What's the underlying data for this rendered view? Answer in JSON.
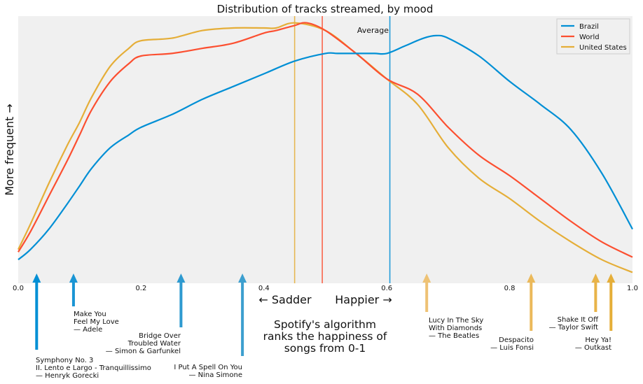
{
  "chart_data": {
    "type": "line",
    "title": "Distribution of tracks streamed, by mood",
    "xlabel_left": "← Sadder",
    "xlabel_right": "Happier →",
    "ylabel": "More frequent →",
    "xlim": [
      0,
      1
    ],
    "ylim": [
      0,
      1
    ],
    "x_ticks": [
      "0.0",
      "0.2",
      "0.4",
      "0.6",
      "0.8",
      "1.0"
    ],
    "x_tick_values": [
      0,
      0.2,
      0.4,
      0.6,
      0.8,
      1.0
    ],
    "grid": false,
    "legend_position": "top-right",
    "average_label": "Average",
    "center_note": [
      "Spotify's algorithm",
      "ranks the happiness of",
      "songs from 0-1"
    ],
    "series": [
      {
        "name": "Brazil",
        "color": "#008fd5",
        "average": 0.605,
        "x": [
          0.0,
          0.02,
          0.05,
          0.08,
          0.1,
          0.12,
          0.15,
          0.18,
          0.2,
          0.25,
          0.3,
          0.35,
          0.4,
          0.45,
          0.5,
          0.52,
          0.55,
          0.58,
          0.6,
          0.63,
          0.66,
          0.68,
          0.7,
          0.75,
          0.8,
          0.85,
          0.9,
          0.95,
          1.0
        ],
        "y": [
          0.09,
          0.13,
          0.21,
          0.31,
          0.38,
          0.45,
          0.53,
          0.58,
          0.61,
          0.66,
          0.72,
          0.77,
          0.82,
          0.87,
          0.9,
          0.9,
          0.9,
          0.9,
          0.9,
          0.93,
          0.96,
          0.97,
          0.96,
          0.89,
          0.79,
          0.7,
          0.6,
          0.43,
          0.21
        ]
      },
      {
        "name": "World",
        "color": "#fc4f30",
        "average": 0.495,
        "x": [
          0.0,
          0.02,
          0.05,
          0.08,
          0.1,
          0.12,
          0.15,
          0.18,
          0.2,
          0.25,
          0.3,
          0.35,
          0.4,
          0.42,
          0.45,
          0.47,
          0.5,
          0.55,
          0.6,
          0.65,
          0.7,
          0.75,
          0.8,
          0.85,
          0.9,
          0.95,
          1.0
        ],
        "y": [
          0.12,
          0.2,
          0.34,
          0.48,
          0.58,
          0.68,
          0.79,
          0.86,
          0.89,
          0.9,
          0.92,
          0.94,
          0.98,
          0.99,
          1.01,
          1.02,
          0.99,
          0.9,
          0.8,
          0.74,
          0.61,
          0.5,
          0.42,
          0.33,
          0.24,
          0.16,
          0.1
        ]
      },
      {
        "name": "United States",
        "color": "#e5ae38",
        "average": 0.45,
        "x": [
          0.0,
          0.02,
          0.05,
          0.08,
          0.1,
          0.12,
          0.15,
          0.18,
          0.2,
          0.25,
          0.3,
          0.35,
          0.4,
          0.42,
          0.45,
          0.5,
          0.55,
          0.6,
          0.65,
          0.7,
          0.75,
          0.8,
          0.85,
          0.9,
          0.95,
          1.0
        ],
        "y": [
          0.13,
          0.23,
          0.39,
          0.54,
          0.63,
          0.73,
          0.85,
          0.92,
          0.95,
          0.96,
          0.99,
          1.0,
          1.0,
          1.0,
          1.02,
          0.99,
          0.9,
          0.8,
          0.7,
          0.53,
          0.41,
          0.33,
          0.24,
          0.16,
          0.09,
          0.04
        ]
      }
    ],
    "annotations": [
      {
        "song": [
          "Symphony No. 3",
          "II. Lento e Largo - Tranquillissimo",
          "— Henryk Gorecki"
        ],
        "x": 0.03,
        "color": "#008fd5",
        "align": "left"
      },
      {
        "song": [
          "Make You",
          "Feel My Love",
          "— Adele"
        ],
        "x": 0.09,
        "color": "#1a95d4",
        "align": "left"
      },
      {
        "song": [
          "Bridge Over",
          "Troubled Water",
          "— Simon & Garfunkel"
        ],
        "x": 0.265,
        "color": "#2e9ad0",
        "align": "right"
      },
      {
        "song": [
          "I Put A Spell On You",
          "— Nina Simone"
        ],
        "x": 0.365,
        "color": "#3c9fcf",
        "align": "right"
      },
      {
        "song": [
          "Lucy In The Sky",
          "With Diamonds",
          "— The Beatles"
        ],
        "x": 0.665,
        "color": "#eec274",
        "align": "left"
      },
      {
        "song": [
          "Despacito",
          "— Luis Fonsi"
        ],
        "x": 0.835,
        "color": "#ebb95a",
        "align": "right"
      },
      {
        "song": [
          "Shake It Off",
          "— Taylor Swift"
        ],
        "x": 0.94,
        "color": "#e8b348",
        "align": "right"
      },
      {
        "song": [
          "Hey Ya!",
          "— Outkast"
        ],
        "x": 0.965,
        "color": "#e5ae38",
        "align": "right"
      }
    ]
  }
}
